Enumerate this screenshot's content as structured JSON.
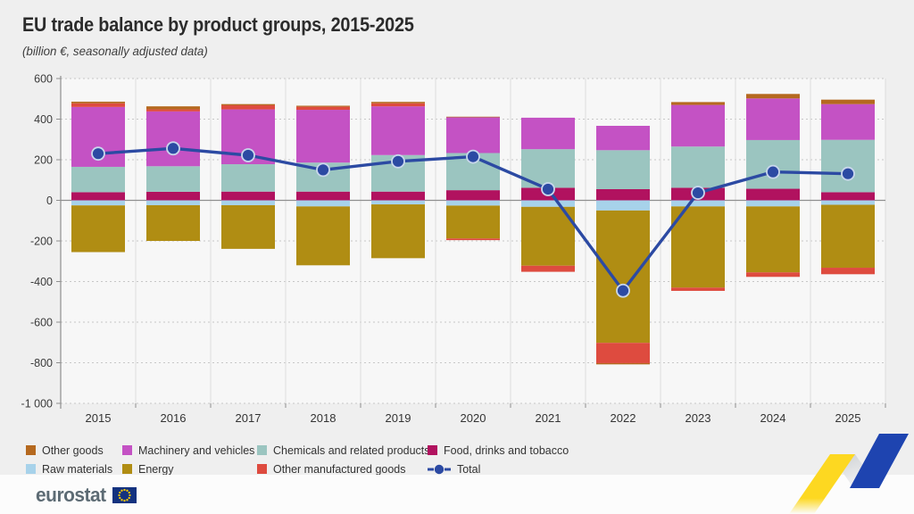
{
  "header": {
    "title": "EU trade balance by product groups, 2015-2025",
    "subtitle": "(billion €, seasonally adjusted data)"
  },
  "chart_data": {
    "type": "bar",
    "subtype": "stacked-bar-with-total-line",
    "title": "EU trade balance by product groups, 2015-2025",
    "unit": "billion €, seasonally adjusted data",
    "categories": [
      "2015",
      "2016",
      "2017",
      "2018",
      "2019",
      "2020",
      "2021",
      "2022",
      "2023",
      "2024",
      "2025"
    ],
    "y_axis": {
      "min": -1000,
      "max": 600,
      "step": 200,
      "tick_labels": [
        "600",
        "400",
        "200",
        "0",
        "-200",
        "-400",
        "-600",
        "-800",
        "-1 000"
      ],
      "grid": "dashed horizontal, solid zero line"
    },
    "series": [
      {
        "name": "Other goods",
        "color": "#b5691f",
        "values": [
          8,
          15,
          6,
          5,
          7,
          3,
          0,
          -6,
          14,
          22,
          22
        ]
      },
      {
        "name": "Machinery and vehicles",
        "color": "#c452c4",
        "values": [
          295,
          270,
          270,
          260,
          240,
          176,
          155,
          120,
          205,
          205,
          176
        ]
      },
      {
        "name": "Chemicals and related products",
        "color": "#9bc5c0",
        "values": [
          125,
          126,
          135,
          143,
          180,
          183,
          190,
          192,
          203,
          240,
          258
        ]
      },
      {
        "name": "Food, drinks and tobacco",
        "color": "#b1125f",
        "values": [
          40,
          42,
          43,
          43,
          43,
          50,
          62,
          55,
          62,
          57,
          40
        ]
      },
      {
        "name": "Raw materials",
        "color": "#a7d2ea",
        "values": [
          -25,
          -24,
          -24,
          -30,
          -20,
          -26,
          -32,
          -50,
          -30,
          -30,
          -22
        ]
      },
      {
        "name": "Energy",
        "color": "#b08d13",
        "values": [
          -230,
          -176,
          -215,
          -290,
          -265,
          -162,
          -290,
          -652,
          -400,
          -325,
          -310
        ]
      },
      {
        "name": "Other manufactured goods",
        "color": "#de4b3f",
        "values": [
          18,
          10,
          20,
          15,
          15,
          -8,
          -30,
          -100,
          -16,
          -22,
          -32
        ]
      }
    ],
    "line_series": {
      "name": "Total",
      "color": "#2c4aa3",
      "dot_stroke": "#c9d7ec",
      "values": [
        230,
        256,
        222,
        150,
        192,
        215,
        55,
        -445,
        37,
        140,
        131
      ]
    },
    "stack_order_positive_from_zero": [
      "Food, drinks and tobacco",
      "Chemicals and related products",
      "Machinery and vehicles",
      "Other manufactured goods",
      "Other goods"
    ],
    "stack_order_negative_from_zero": [
      "Raw materials",
      "Energy",
      "Other manufactured goods",
      "Other goods"
    ],
    "legend_position": "bottom"
  },
  "legend": {
    "rows": [
      [
        "Other goods",
        "Machinery and vehicles",
        "Chemicals and related products",
        "Food, drinks and tobacco"
      ],
      [
        "Raw materials",
        "Energy",
        "Other manufactured goods",
        "Total"
      ]
    ]
  },
  "footer": {
    "logo_text": "eurostat",
    "flag_blue": "#13327f",
    "flag_star_yellow": "#ffcc00",
    "ribbon_yellow": "#fdd821",
    "ribbon_gray": "#c9cdd1",
    "ribbon_blue": "#1e44b0"
  },
  "style_colors": {
    "page_background": "#efefef",
    "plot_background": "#f7f7f7",
    "grid_dashed": "#c7c7c7",
    "axis_and_zero_line": "#8f8f8f",
    "group_separator": "#dcdcdc",
    "text": "#333333"
  }
}
